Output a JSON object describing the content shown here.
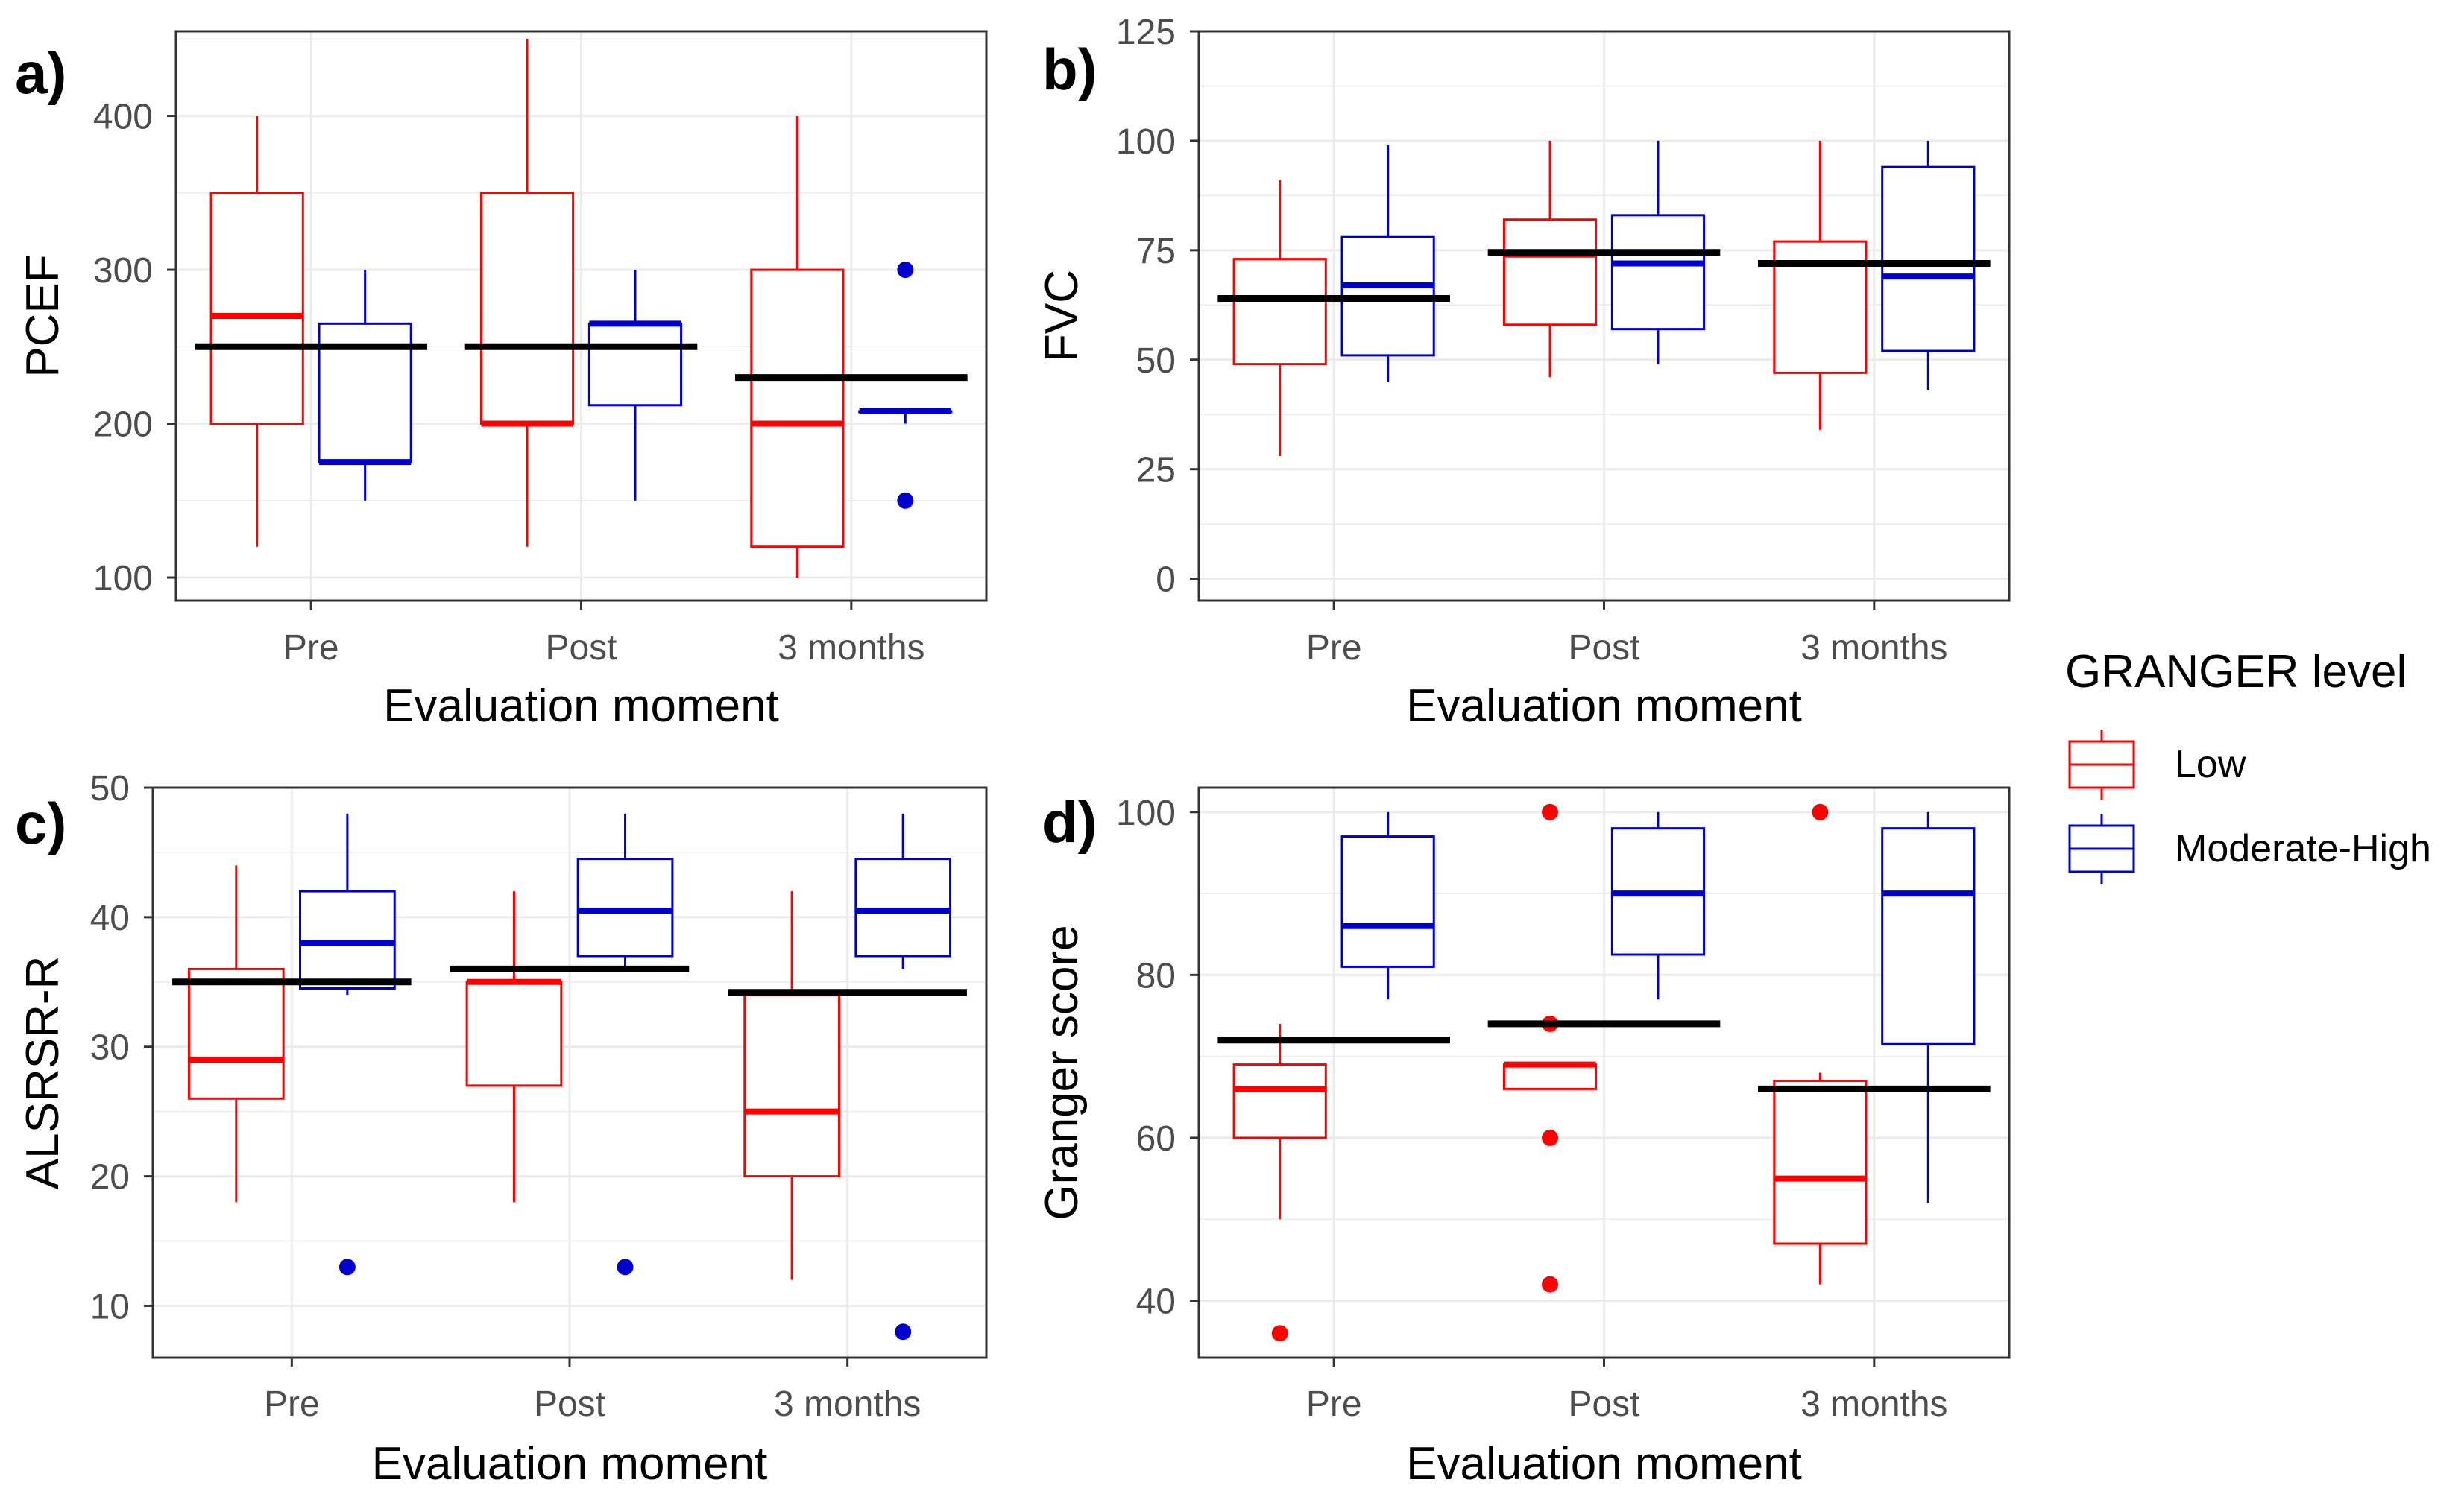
{
  "legend": {
    "title": "GRANGER level",
    "items": [
      {
        "label": "Low",
        "color": "#ff0000"
      },
      {
        "label": "Moderate-High",
        "color": "#0000cd"
      }
    ]
  },
  "chart_data": [
    {
      "type": "box",
      "panel_label": "a)",
      "xlabel": "Evaluation moment",
      "ylabel": "PCEF",
      "categories": [
        "Pre",
        "Post",
        "3 months"
      ],
      "ylim": [
        85,
        455
      ],
      "yticks": [
        100,
        200,
        300,
        400
      ],
      "grid": true,
      "series": [
        {
          "name": "Low",
          "color": "#ff0000",
          "boxes": [
            {
              "min": 120,
              "q1": 200,
              "median": 270,
              "q3": 350,
              "max": 400,
              "outliers": []
            },
            {
              "min": 120,
              "q1": 200,
              "median": 200,
              "q3": 350,
              "max": 450,
              "outliers": []
            },
            {
              "min": 100,
              "q1": 120,
              "median": 200,
              "q3": 300,
              "max": 400,
              "outliers": []
            }
          ]
        },
        {
          "name": "Moderate-High",
          "color": "#0000cd",
          "boxes": [
            {
              "min": 150,
              "q1": 175,
              "median": 175,
              "q3": 265,
              "max": 300,
              "outliers": []
            },
            {
              "min": 150,
              "q1": 212,
              "median": 265,
              "q3": 265,
              "max": 300,
              "outliers": []
            },
            {
              "min": 200,
              "q1": 208,
              "median": 208,
              "q3": 208,
              "max": 208,
              "outliers": [
                300,
                150
              ]
            }
          ]
        }
      ],
      "overall_means": [
        250,
        250,
        230
      ]
    },
    {
      "type": "box",
      "panel_label": "b)",
      "xlabel": "Evaluation moment",
      "ylabel": "FVC",
      "categories": [
        "Pre",
        "Post",
        "3 months"
      ],
      "ylim": [
        -5,
        125
      ],
      "yticks": [
        0,
        25,
        50,
        75,
        100,
        125
      ],
      "grid": true,
      "series": [
        {
          "name": "Low",
          "color": "#ff0000",
          "boxes": [
            {
              "min": 28,
              "q1": 49,
              "median": 64,
              "q3": 73,
              "max": 91,
              "outliers": []
            },
            {
              "min": 46,
              "q1": 58,
              "median": 74,
              "q3": 82,
              "max": 100,
              "outliers": []
            },
            {
              "min": 34,
              "q1": 47,
              "median": 72,
              "q3": 77,
              "max": 100,
              "outliers": []
            }
          ]
        },
        {
          "name": "Moderate-High",
          "color": "#0000cd",
          "boxes": [
            {
              "min": 45,
              "q1": 51,
              "median": 67,
              "q3": 78,
              "max": 99,
              "outliers": []
            },
            {
              "min": 49,
              "q1": 57,
              "median": 72,
              "q3": 83,
              "max": 100,
              "outliers": []
            },
            {
              "min": 43,
              "q1": 52,
              "median": 69,
              "q3": 94,
              "max": 100,
              "outliers": []
            }
          ]
        }
      ],
      "overall_means": [
        64,
        74.5,
        72
      ]
    },
    {
      "type": "box",
      "panel_label": "c)",
      "xlabel": "Evaluation moment",
      "ylabel": "ALSRSR-R",
      "categories": [
        "Pre",
        "Post",
        "3 months"
      ],
      "ylim": [
        6,
        50
      ],
      "yticks": [
        10,
        20,
        30,
        40,
        50
      ],
      "grid": true,
      "series": [
        {
          "name": "Low",
          "color": "#ff0000",
          "boxes": [
            {
              "min": 18,
              "q1": 26,
              "median": 29,
              "q3": 36,
              "max": 44,
              "outliers": []
            },
            {
              "min": 18,
              "q1": 27,
              "median": 35,
              "q3": 35,
              "max": 42,
              "outliers": []
            },
            {
              "min": 12,
              "q1": 20,
              "median": 25,
              "q3": 34,
              "max": 42,
              "outliers": []
            }
          ]
        },
        {
          "name": "Moderate-High",
          "color": "#0000cd",
          "boxes": [
            {
              "min": 34,
              "q1": 34.5,
              "median": 38,
              "q3": 42,
              "max": 48,
              "outliers": [
                13
              ]
            },
            {
              "min": 36,
              "q1": 37,
              "median": 40.5,
              "q3": 44.5,
              "max": 48,
              "outliers": [
                13
              ]
            },
            {
              "min": 36,
              "q1": 37,
              "median": 40.5,
              "q3": 44.5,
              "max": 48,
              "outliers": [
                8
              ]
            }
          ]
        }
      ],
      "overall_means": [
        35,
        36,
        34.2
      ]
    },
    {
      "type": "box",
      "panel_label": "d)",
      "xlabel": "Evaluation moment",
      "ylabel": "Granger score",
      "categories": [
        "Pre",
        "Post",
        "3 months"
      ],
      "ylim": [
        33,
        103
      ],
      "yticks": [
        40,
        60,
        80,
        100
      ],
      "grid": true,
      "series": [
        {
          "name": "Low",
          "color": "#ff0000",
          "boxes": [
            {
              "min": 50,
              "q1": 60,
              "median": 66,
              "q3": 69,
              "max": 74,
              "outliers": [
                36
              ]
            },
            {
              "min": 66,
              "q1": 66,
              "median": 69,
              "q3": 69,
              "max": 69,
              "outliers": [
                100,
                74,
                60,
                42
              ]
            },
            {
              "min": 42,
              "q1": 47,
              "median": 55,
              "q3": 67,
              "max": 68,
              "outliers": [
                100
              ]
            }
          ]
        },
        {
          "name": "Moderate-High",
          "color": "#0000cd",
          "boxes": [
            {
              "min": 77,
              "q1": 81,
              "median": 86,
              "q3": 97,
              "max": 100,
              "outliers": []
            },
            {
              "min": 77,
              "q1": 82.5,
              "median": 90,
              "q3": 98,
              "max": 100,
              "outliers": []
            },
            {
              "min": 52,
              "q1": 71.5,
              "median": 90,
              "q3": 98,
              "max": 100,
              "outliers": []
            }
          ]
        }
      ],
      "overall_means": [
        72,
        74,
        66
      ]
    }
  ]
}
